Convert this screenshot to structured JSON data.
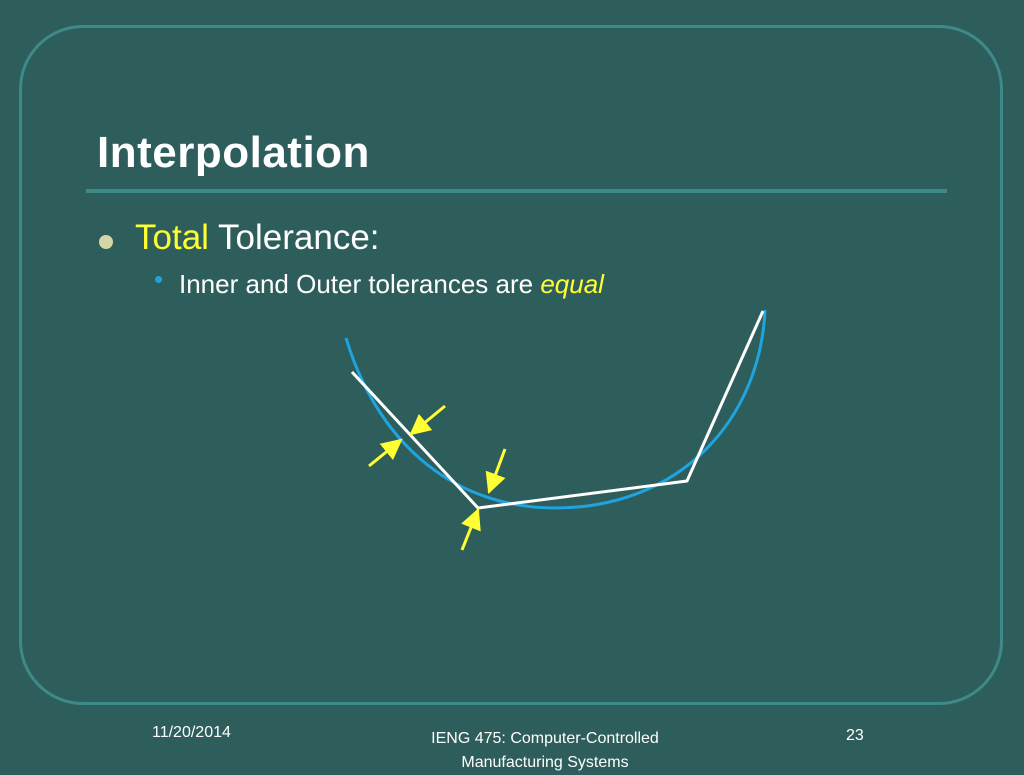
{
  "slide": {
    "title": "Interpolation",
    "bullet": {
      "highlight": "Total",
      "rest": " Tolerance:"
    },
    "sub_bullet": {
      "text": "Inner and Outer tolerances are ",
      "emphasis": "equal"
    }
  },
  "footer": {
    "date": "11/20/2014",
    "course_line1": "IENG 475: Computer-Controlled",
    "course_line2": "Manufacturing Systems",
    "page": "23"
  },
  "colors": {
    "background": "#2e5e5c",
    "frame": "#3e8a8a",
    "highlight": "#ffff33",
    "curve": "#1fa4e0",
    "polyline": "#ffffff",
    "arrows": "#ffff33"
  },
  "icons": {
    "bullet_level1": "round-bullet-icon",
    "bullet_level2": "small-blue-bullet-icon"
  }
}
